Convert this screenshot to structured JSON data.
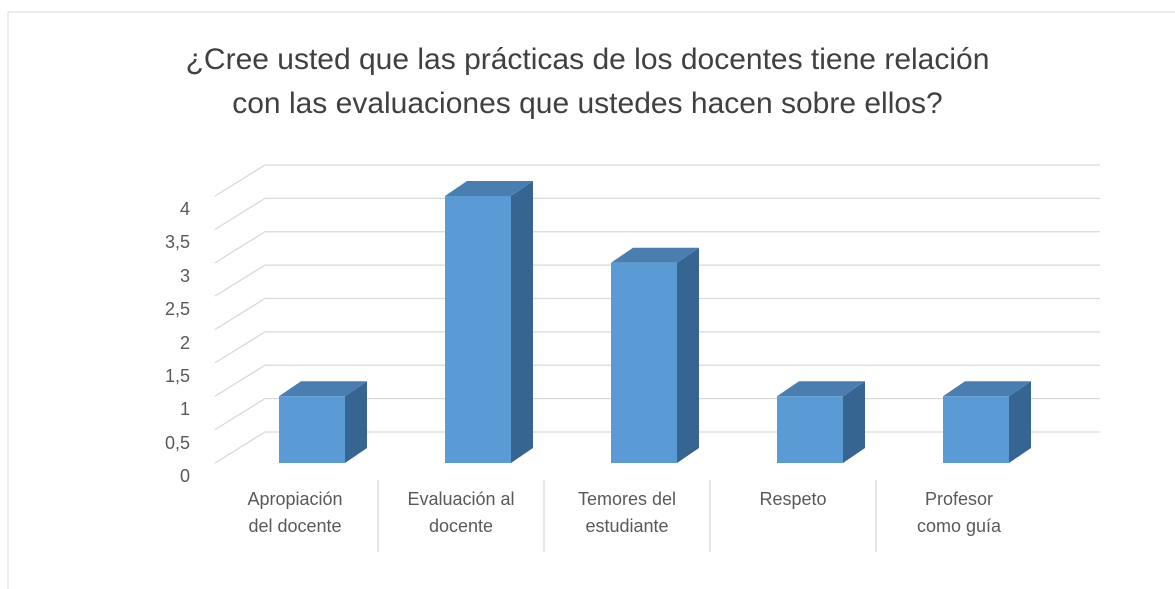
{
  "chart_data": {
    "type": "bar3d",
    "title": "¿Cree usted que las prácticas de los docentes tiene relación\ncon las evaluaciones que ustedes hacen sobre ellos?",
    "categories": [
      "Apropiación\ndel docente",
      "Evaluación al\ndocente",
      "Temores del\nestudiante",
      "Respeto",
      "Profesor\ncomo guía"
    ],
    "values": [
      1,
      4,
      3,
      1,
      1
    ],
    "color": "#5b9bd5",
    "ylim": [
      0,
      4
    ],
    "yticks": [
      0,
      {
        "value": 0.5,
        "label": "0,5"
      },
      1,
      {
        "value": 1.5,
        "label": "1,5"
      },
      2,
      {
        "value": 2.5,
        "label": "2,5"
      },
      3,
      {
        "value": 3.5,
        "label": "3,5"
      },
      4
    ],
    "grid": true
  }
}
